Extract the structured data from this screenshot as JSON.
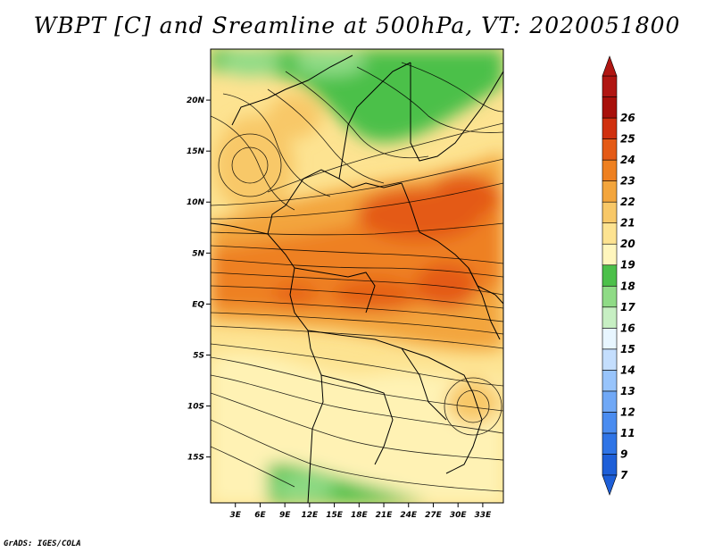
{
  "title": "WBPT [C] and Sreamline at 500hPa, VT: 2020051800",
  "credit": "GrADS: IGES/COLA",
  "map": {
    "lon_range": [
      0,
      35.5
    ],
    "lat_range": [
      -19.5,
      25
    ],
    "lon_ticks": [
      "3E",
      "6E",
      "9E",
      "12E",
      "15E",
      "18E",
      "21E",
      "24E",
      "27E",
      "30E",
      "33E"
    ],
    "lon_tick_values": [
      3,
      6,
      9,
      12,
      15,
      18,
      21,
      24,
      27,
      30,
      33
    ],
    "lat_ticks": [
      "20N",
      "15N",
      "10N",
      "5N",
      "EQ",
      "5S",
      "10S",
      "15S"
    ],
    "lat_tick_values": [
      20,
      15,
      10,
      5,
      0,
      -5,
      -10,
      -15
    ]
  },
  "colorbar": {
    "labels": [
      "7",
      "9",
      "11",
      "12",
      "13",
      "14",
      "15",
      "16",
      "17",
      "18",
      "19",
      "20",
      "21",
      "22",
      "23",
      "24",
      "25",
      "26"
    ],
    "colors": [
      "#1e5fd8",
      "#2f74e6",
      "#4a8cf0",
      "#70a8f6",
      "#98c4fb",
      "#c4defd",
      "#e8f6ff",
      "#c7efc3",
      "#8fdb86",
      "#4cc04a",
      "#fff6bd",
      "#fde391",
      "#f8c868",
      "#f3a53c",
      "#ee8020",
      "#e45a16",
      "#d0300e",
      "#a8100a",
      "#b01612"
    ],
    "arrow_low_color": "#1e5fd8",
    "arrow_high_color": "#b01612"
  }
}
